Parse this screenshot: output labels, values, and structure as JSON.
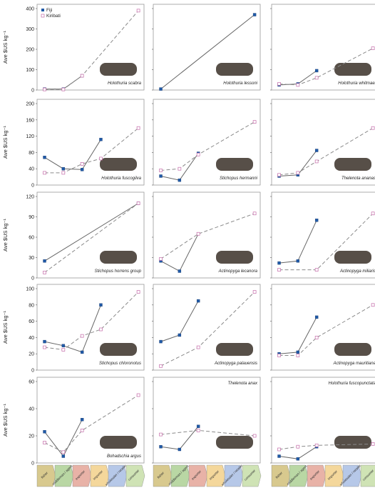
{
  "colors": {
    "fiji_line": "#666666",
    "fiji_point": "#1f5aa8",
    "kiribati_line": "#8a8a8a",
    "kiribati_point": "#c46aa8",
    "panel_border": "#9a9a9a",
    "photo": "#3a3028",
    "categories": [
      "#d8c98e",
      "#b9d7a4",
      "#e8b2a7",
      "#f4d79b",
      "#b6c8e8",
      "#cfe3b5",
      "#e0d6e8",
      "#d0d0d0"
    ]
  },
  "legend": {
    "fiji": "Fiji",
    "kiribati": "Kiribati"
  },
  "y_axis_label": "Ave $US kg⁻¹",
  "category_labels": [
    "fisher",
    "middleman / agent",
    "exporter",
    "importer",
    "wholesaler / retailer",
    "consumer"
  ],
  "chart_data": [
    {
      "type": "line",
      "row": 0,
      "col": 0,
      "ylim": [
        0,
        400
      ],
      "yticks": [
        0,
        100,
        200,
        300,
        400
      ],
      "species": "Holothuria scabra",
      "series": [
        {
          "name": "Fiji",
          "x": [
            1,
            2,
            3
          ],
          "y": [
            5,
            5,
            70
          ]
        },
        {
          "name": "Kiribati",
          "x": [
            1,
            2,
            3,
            6
          ],
          "y": [
            3,
            3,
            70,
            390
          ]
        }
      ]
    },
    {
      "type": "line",
      "row": 0,
      "col": 1,
      "ylim": [
        0,
        400
      ],
      "yticks": [
        0,
        100,
        200,
        300,
        400
      ],
      "species": "Holothuria lessoni",
      "series": [
        {
          "name": "Fiji",
          "x": [
            1,
            6
          ],
          "y": [
            5,
            370
          ]
        }
      ]
    },
    {
      "type": "line",
      "row": 0,
      "col": 2,
      "ylim": [
        0,
        400
      ],
      "yticks": [
        0,
        100,
        200,
        300,
        400
      ],
      "species": "Holothuria whitmaei",
      "series": [
        {
          "name": "Fiji",
          "x": [
            1,
            2,
            3
          ],
          "y": [
            25,
            30,
            95
          ]
        },
        {
          "name": "Kiribati",
          "x": [
            1,
            2,
            3,
            6
          ],
          "y": [
            30,
            25,
            60,
            205
          ]
        }
      ]
    },
    {
      "type": "line",
      "row": 1,
      "col": 0,
      "ylim": [
        0,
        200
      ],
      "yticks": [
        0,
        40,
        80,
        120,
        160,
        200
      ],
      "species": "Holothuria fuscogilva",
      "series": [
        {
          "name": "Fiji",
          "x": [
            1,
            2,
            3,
            4
          ],
          "y": [
            68,
            40,
            38,
            112
          ]
        },
        {
          "name": "Kiribati",
          "x": [
            1,
            2,
            3,
            4,
            6
          ],
          "y": [
            30,
            30,
            52,
            65,
            140
          ]
        }
      ]
    },
    {
      "type": "line",
      "row": 1,
      "col": 1,
      "ylim": [
        0,
        200
      ],
      "yticks": [
        0,
        40,
        80,
        120,
        160,
        200
      ],
      "species": "Stichopus hermanni",
      "series": [
        {
          "name": "Fiji",
          "x": [
            1,
            2,
            3
          ],
          "y": [
            22,
            12,
            78
          ]
        },
        {
          "name": "Kiribati",
          "x": [
            1,
            2,
            3,
            6
          ],
          "y": [
            36,
            40,
            75,
            155
          ]
        }
      ]
    },
    {
      "type": "line",
      "row": 1,
      "col": 2,
      "ylim": [
        0,
        200
      ],
      "yticks": [
        0,
        40,
        80,
        120,
        160,
        200
      ],
      "species": "Thelenota ananas",
      "series": [
        {
          "name": "Fiji",
          "x": [
            1,
            2,
            3
          ],
          "y": [
            22,
            25,
            85
          ]
        },
        {
          "name": "Kiribati",
          "x": [
            1,
            2,
            3,
            6
          ],
          "y": [
            25,
            30,
            58,
            140
          ]
        }
      ]
    },
    {
      "type": "line",
      "row": 2,
      "col": 0,
      "ylim": [
        0,
        120
      ],
      "yticks": [
        0,
        30,
        60,
        90,
        120
      ],
      "species": "Stichopus horrens group",
      "series": [
        {
          "name": "Fiji",
          "x": [
            1,
            6
          ],
          "y": [
            25,
            110
          ]
        },
        {
          "name": "Kiribati",
          "x": [
            1,
            6
          ],
          "y": [
            8,
            110
          ]
        }
      ]
    },
    {
      "type": "line",
      "row": 2,
      "col": 1,
      "ylim": [
        0,
        120
      ],
      "yticks": [
        0,
        30,
        60,
        90,
        120
      ],
      "species": "Actinopyga lecanora",
      "series": [
        {
          "name": "Fiji",
          "x": [
            1,
            2,
            3
          ],
          "y": [
            25,
            10,
            65
          ]
        },
        {
          "name": "Kiribati",
          "x": [
            1,
            3,
            6
          ],
          "y": [
            28,
            65,
            95
          ]
        }
      ]
    },
    {
      "type": "line",
      "row": 2,
      "col": 2,
      "ylim": [
        0,
        120
      ],
      "yticks": [
        0,
        30,
        60,
        90,
        120
      ],
      "species": "Actinopyga miliaris",
      "series": [
        {
          "name": "Fiji",
          "x": [
            1,
            2,
            3
          ],
          "y": [
            22,
            25,
            85
          ]
        },
        {
          "name": "Kiribati",
          "x": [
            1,
            3,
            6
          ],
          "y": [
            12,
            12,
            95
          ]
        }
      ]
    },
    {
      "type": "line",
      "row": 3,
      "col": 0,
      "ylim": [
        0,
        100
      ],
      "yticks": [
        0,
        20,
        40,
        60,
        80,
        100
      ],
      "species": "Stichopus chloronotus",
      "series": [
        {
          "name": "Fiji",
          "x": [
            1,
            2,
            3,
            4
          ],
          "y": [
            35,
            30,
            22,
            80
          ]
        },
        {
          "name": "Kiribati",
          "x": [
            1,
            2,
            3,
            4,
            6
          ],
          "y": [
            28,
            25,
            42,
            50,
            96
          ]
        }
      ]
    },
    {
      "type": "line",
      "row": 3,
      "col": 1,
      "ylim": [
        0,
        100
      ],
      "yticks": [
        0,
        20,
        40,
        60,
        80,
        100
      ],
      "species": "Actinopyga palauensis",
      "series": [
        {
          "name": "Fiji",
          "x": [
            1,
            2,
            3
          ],
          "y": [
            35,
            43,
            85
          ]
        },
        {
          "name": "Kiribati",
          "x": [
            1,
            3,
            6
          ],
          "y": [
            5,
            28,
            96
          ]
        }
      ]
    },
    {
      "type": "line",
      "row": 3,
      "col": 2,
      "ylim": [
        0,
        100
      ],
      "yticks": [
        0,
        20,
        40,
        60,
        80,
        100
      ],
      "species": "Actinopyga mauritiana",
      "series": [
        {
          "name": "Fiji",
          "x": [
            1,
            2,
            3
          ],
          "y": [
            20,
            22,
            65
          ]
        },
        {
          "name": "Kiribati",
          "x": [
            1,
            2,
            3,
            6
          ],
          "y": [
            18,
            18,
            40,
            80
          ]
        }
      ]
    },
    {
      "type": "line",
      "row": 4,
      "col": 0,
      "ylim": [
        0,
        60
      ],
      "yticks": [
        0,
        20,
        40,
        60
      ],
      "species": "Bohadschia argus",
      "series": [
        {
          "name": "Fiji",
          "x": [
            1,
            2,
            3
          ],
          "y": [
            23,
            5,
            32
          ]
        },
        {
          "name": "Kiribati",
          "x": [
            1,
            2,
            3,
            6
          ],
          "y": [
            15,
            8,
            24,
            50
          ]
        }
      ]
    },
    {
      "type": "line",
      "row": 4,
      "col": 1,
      "ylim": [
        0,
        60
      ],
      "yticks": [
        0,
        20,
        40,
        60
      ],
      "species": "Thelenota anax",
      "series": [
        {
          "name": "Fiji",
          "x": [
            1,
            2,
            3
          ],
          "y": [
            12,
            10,
            27
          ]
        },
        {
          "name": "Kiribati",
          "x": [
            1,
            3,
            6
          ],
          "y": [
            21,
            24,
            20
          ]
        }
      ]
    },
    {
      "type": "line",
      "row": 4,
      "col": 2,
      "ylim": [
        0,
        60
      ],
      "yticks": [
        0,
        20,
        40,
        60
      ],
      "species": "Holothuria fuscopunctata",
      "series": [
        {
          "name": "Fiji",
          "x": [
            1,
            2,
            3
          ],
          "y": [
            5,
            3,
            12
          ]
        },
        {
          "name": "Kiribati",
          "x": [
            1,
            2,
            3,
            6
          ],
          "y": [
            10,
            12,
            13,
            14
          ]
        }
      ]
    }
  ]
}
